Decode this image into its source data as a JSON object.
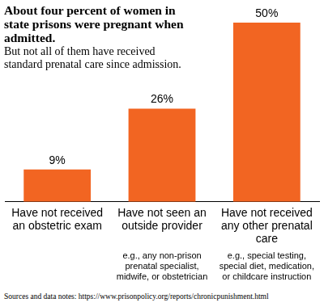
{
  "chart_data": {
    "type": "bar",
    "title": "About four percent of women in state prisons were pregnant when admitted.",
    "subtitle": "But not all of them have received standard prenatal care since admission.",
    "categories": [
      "Have not received an obstetric exam",
      "Have not seen an outside provider",
      "Have not received any other prenatal care"
    ],
    "category_notes": [
      null,
      "e.g., any non-prison prenatal specialist, midwife, or obstetrician",
      "e.g., special testing, special diet, medication, or childcare instruction"
    ],
    "values": [
      9,
      26,
      50
    ],
    "value_labels": [
      "9%",
      "26%",
      "50%"
    ],
    "data_labels": true,
    "color": "#f26522",
    "ylim": [
      0,
      50
    ],
    "grid": false,
    "tick_labels": "x",
    "source": "Sources and data notes: https://www.prisonpolicy.org/reports/chronicpunishment.html"
  }
}
